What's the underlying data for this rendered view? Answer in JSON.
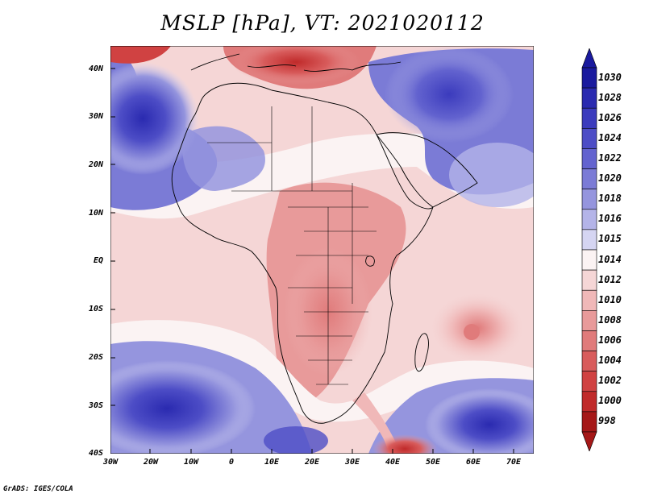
{
  "title": "MSLP [hPa], VT: 2021020112",
  "credit": "GrADS: IGES/COLA",
  "lat_labels": [
    "40N",
    "30N",
    "20N",
    "10N",
    "EQ",
    "10S",
    "20S",
    "30S",
    "40S"
  ],
  "lon_labels": [
    "30W",
    "20W",
    "10W",
    "0",
    "10E",
    "20E",
    "30E",
    "40E",
    "50E",
    "60E",
    "70E"
  ],
  "colorbar": {
    "levels": [
      "1030",
      "1028",
      "1026",
      "1024",
      "1022",
      "1020",
      "1018",
      "1016",
      "1015",
      "1014",
      "1012",
      "1010",
      "1008",
      "1006",
      "1004",
      "1002",
      "1000",
      "998"
    ],
    "colors": [
      "#1a1a9e",
      "#2a2ab0",
      "#3b3bbd",
      "#4d4dc6",
      "#6363cf",
      "#7b7bd6",
      "#9595de",
      "#b4b4e8",
      "#d5d5f2",
      "#fbf3f3",
      "#f5d6d6",
      "#f0b8b8",
      "#e89a9a",
      "#e07b7b",
      "#d85c5c",
      "#d04242",
      "#c02a2a",
      "#a51818"
    ],
    "top_arrow_color": "#1a1a9e",
    "bottom_arrow_color": "#a51818"
  },
  "map": {
    "background_color": "#f6d9d9",
    "coastline_color": "#000000"
  }
}
